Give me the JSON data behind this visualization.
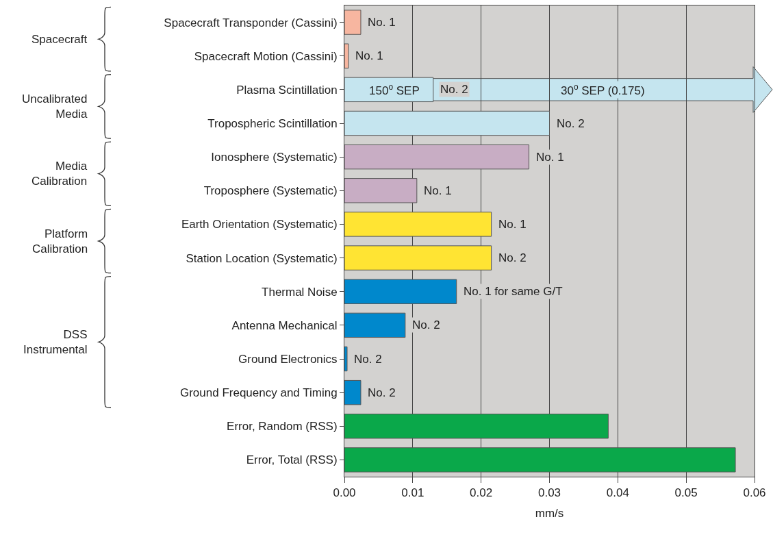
{
  "chart_data": {
    "type": "bar",
    "orientation": "horizontal",
    "xlabel": "mm/s",
    "categories": [
      "Spacecraft Transponder (Cassini)",
      "Spacecraft Motion (Cassini)",
      "Plasma Scintillation",
      "Tropospheric Scintillation",
      "Ionosphere (Systematic)",
      "Troposphere (Systematic)",
      "Earth Orientation (Systematic)",
      "Station Location (Systematic)",
      "Thermal Noise",
      "Antenna Mechanical",
      "Ground Electronics",
      "Ground Frequency and Timing",
      "Error, Random (RSS)",
      "Error, Total (RSS)"
    ],
    "values": [
      0.0024,
      0.0006,
      0.013,
      0.03,
      0.027,
      0.0106,
      0.0215,
      0.0215,
      0.0164,
      0.0089,
      0.0004,
      0.0024,
      0.0386,
      0.0572
    ],
    "colors": [
      "#f7b6a0",
      "#f7b6a0",
      "#c5e5ef",
      "#c5e5ef",
      "#c8adc4",
      "#c8adc4",
      "#ffe433",
      "#ffe433",
      "#0088cc",
      "#0088cc",
      "#0088cc",
      "#0088cc",
      "#0aa84a",
      "#0aa84a"
    ],
    "xlim": [
      0,
      0.06
    ],
    "xticks": [
      {
        "value": 0,
        "label": "0.00"
      },
      {
        "value": 0.01,
        "label": "0.01"
      },
      {
        "value": 0.02,
        "label": "0.02"
      },
      {
        "value": 0.03,
        "label": "0.03"
      },
      {
        "value": 0.04,
        "label": "0.04"
      },
      {
        "value": 0.05,
        "label": "0.05"
      },
      {
        "value": 0.06,
        "label": "0.06"
      }
    ],
    "grid": "x",
    "annotations": [
      "Spacecraft",
      "Uncalibrated\nMedia",
      "Media\nCalibration",
      "Platform\nCalibration",
      "DSS\nInstrumental",
      "30$^{o}$ SEP (0.175)",
      {
        "text": "150$^{o}$ SEP",
        "x": 0.013,
        "y": "Plasma Scintillation"
      },
      {
        "text": "No. 1",
        "x": 0.0024,
        "y": "Spacecraft Transponder (Cassini)"
      },
      {
        "text": "No. 1",
        "x": 0.0006,
        "y": "Spacecraft Motion (Cassini)"
      },
      {
        "text": "No. 2",
        "x": 0.013,
        "y": "Plasma Scintillation"
      },
      {
        "text": "No. 2",
        "x": 0.03,
        "y": "Tropospheric Scintillation"
      },
      {
        "text": "No. 1",
        "x": 0.027,
        "y": "Ionosphere (Systematic)"
      },
      {
        "text": "No. 1",
        "x": 0.0106,
        "y": "Troposphere (Systematic)"
      },
      {
        "text": "No. 1",
        "x": 0.0215,
        "y": "Earth Orientation (Systematic)"
      },
      {
        "text": "No. 2",
        "x": 0.0215,
        "y": "Station Location (Systematic)"
      },
      {
        "text": "No. 1 for same G/T",
        "x": 0.0164,
        "y": "Thermal Noise"
      },
      {
        "text": "No. 2",
        "x": 0.0089,
        "y": "Antenna Mechanical"
      },
      {
        "text": "No. 2",
        "x": 0.0004,
        "y": "Ground Electronics"
      },
      {
        "text": "No. 2",
        "x": 0.0024,
        "y": "Ground Frequency and Timing"
      }
    ]
  }
}
